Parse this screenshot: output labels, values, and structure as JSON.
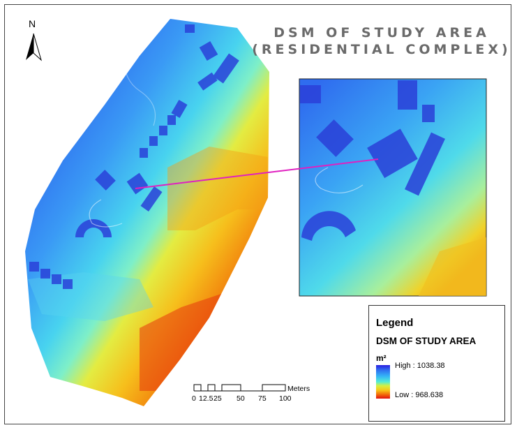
{
  "map": {
    "north": "N",
    "title_line1": "DSM OF STUDY AREA",
    "title_line2": "(RESIDENTIAL COMPLEX)"
  },
  "legend": {
    "title": "Legend",
    "layer": "DSM OF STUDY AREA",
    "unit": "m²",
    "high_label": "High : 1038.38",
    "low_label": "Low : 968.638"
  },
  "scalebar": {
    "ticks": [
      "0",
      "12.5",
      "25",
      "50",
      "75",
      "100"
    ],
    "unit": "Meters"
  },
  "colors": {
    "high": "#2a1de0",
    "mid": "#52ecd6",
    "low": "#e01010",
    "connector": "#e020c0"
  }
}
